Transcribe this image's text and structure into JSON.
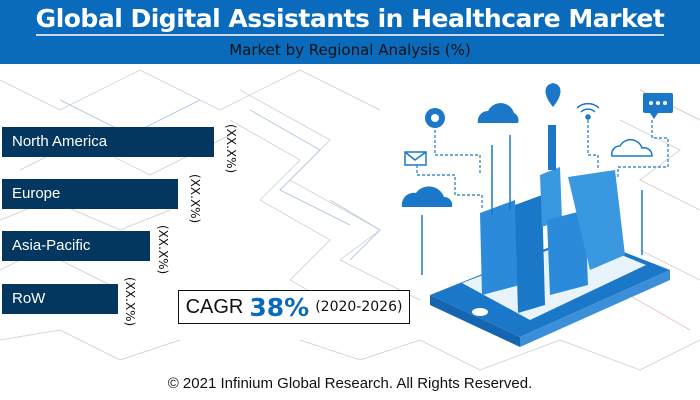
{
  "header": {
    "title": "Global Digital Assistants in Healthcare Market",
    "subtitle": "Market by Regional Analysis (%)"
  },
  "chart_data": {
    "type": "bar",
    "orientation": "horizontal",
    "title": "Global Digital Assistants in Healthcare Market",
    "subtitle": "Market by Regional Analysis (%)",
    "categories": [
      "North America",
      "Europe",
      "Asia-Pacific",
      "RoW"
    ],
    "value_labels": [
      "(XX.X%)",
      "(XX.X%)",
      "(XX.X%)",
      "(XX.X%)"
    ],
    "bar_color": "#04375f"
  },
  "cagr": {
    "label": "CAGR",
    "value": "38%",
    "period": "(2020-2026)",
    "accent": "#0a6bbd"
  },
  "footer": "© 2021 Infinium Global Research. All Rights Reserved."
}
